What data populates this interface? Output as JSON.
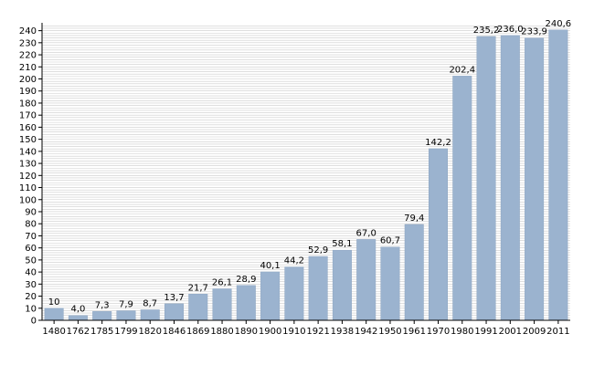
{
  "chart_data": {
    "type": "bar",
    "categories": [
      "1480",
      "1762",
      "1785",
      "1799",
      "1820",
      "1846",
      "1869",
      "1880",
      "1890",
      "1900",
      "1910",
      "1921",
      "1938",
      "1942",
      "1950",
      "1961",
      "1970",
      "1980",
      "1991",
      "2001",
      "2009",
      "2011"
    ],
    "values": [
      10.0,
      4.0,
      7.3,
      7.9,
      8.7,
      13.7,
      21.7,
      26.1,
      28.9,
      40.1,
      44.2,
      52.9,
      58.1,
      67.0,
      60.7,
      79.4,
      142.2,
      202.4,
      235.2,
      236.0,
      233.9,
      240.6
    ],
    "value_labels": [
      "10",
      "4,0",
      "7,3",
      "7,9",
      "8,7",
      "13,7",
      "21,7",
      "26,1",
      "28,9",
      "40,1",
      "44,2",
      "52,9",
      "58,1",
      "67,0",
      "60,7",
      "79,4",
      "142,2",
      "202,4",
      "235,2",
      "236,0",
      "233,9",
      "240,6"
    ],
    "ylim": [
      0,
      245
    ],
    "yticks": [
      0,
      10,
      20,
      30,
      40,
      50,
      60,
      70,
      80,
      90,
      100,
      110,
      120,
      130,
      140,
      150,
      160,
      170,
      180,
      190,
      200,
      210,
      220,
      230,
      240
    ],
    "grid": true,
    "bar_color": "#9bb3cf",
    "bar_edge_color": "#8ea6c2",
    "grid_color": "#cccccc",
    "axis_color": "#000000"
  }
}
